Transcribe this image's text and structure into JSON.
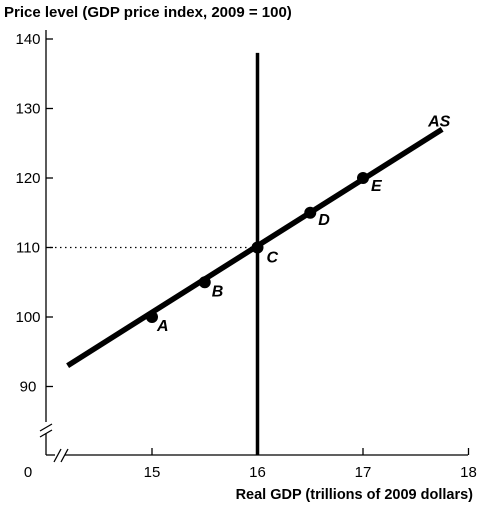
{
  "chart_data": {
    "type": "line",
    "ylabel": "Price level (GDP price index, 2009 = 100)",
    "xlabel": "Real GDP (trillions of 2009 dollars)",
    "origin_label": "0",
    "x_ticks": [
      "15",
      "16",
      "17",
      "18"
    ],
    "y_ticks": [
      "90",
      "100",
      "110",
      "120",
      "130",
      "140"
    ],
    "xlim": [
      14,
      18
    ],
    "ylim": [
      85,
      140
    ],
    "axis_breaks": true,
    "series": [
      {
        "name": "AS",
        "x": [
          14.2,
          17.75
        ],
        "y": [
          93,
          127
        ]
      }
    ],
    "vertical_line": {
      "x": 16,
      "y_range": [
        81,
        138
      ]
    },
    "reference_line": {
      "y": 110,
      "style": "dotted",
      "x_from": 14,
      "x_to": 16
    },
    "points": [
      {
        "label": "A",
        "x": 15,
        "y": 100
      },
      {
        "label": "B",
        "x": 15.5,
        "y": 105
      },
      {
        "label": "C",
        "x": 16,
        "y": 110
      },
      {
        "label": "D",
        "x": 16.5,
        "y": 115
      },
      {
        "label": "E",
        "x": 17,
        "y": 120
      }
    ]
  }
}
